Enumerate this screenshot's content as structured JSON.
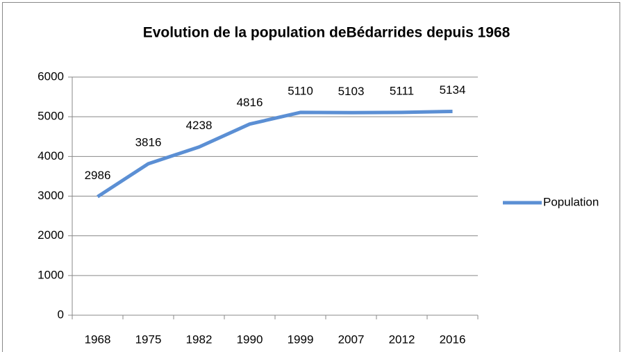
{
  "chart_data": {
    "type": "line",
    "title": "Evolution de la population deBédarrides depuis 1968",
    "categories": [
      "1968",
      "1975",
      "1982",
      "1990",
      "1999",
      "2007",
      "2012",
      "2016"
    ],
    "series": [
      {
        "name": "Population",
        "color": "#5b8fd4",
        "values": [
          2986,
          3816,
          4238,
          4816,
          5110,
          5103,
          5111,
          5134
        ]
      }
    ],
    "ylim": [
      0,
      6000
    ],
    "yticks": [
      0,
      1000,
      2000,
      3000,
      4000,
      5000,
      6000
    ],
    "grid": true,
    "legend": "right"
  }
}
